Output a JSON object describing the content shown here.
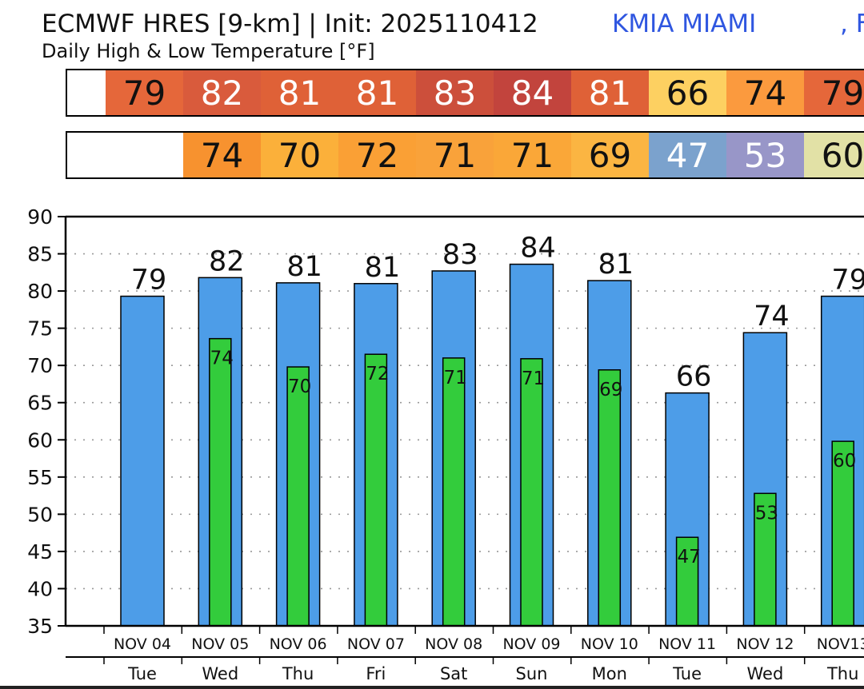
{
  "header": {
    "title": "ECMWF HRES [9-km] | Init: 2025110412",
    "station": "KMIA MIAMI",
    "station_extra": ", F",
    "subtitle": "Daily High & Low Temperature [°F]"
  },
  "high_strip": {
    "values": [
      "79",
      "82",
      "81",
      "81",
      "83",
      "84",
      "81",
      "66",
      "74",
      "79"
    ],
    "colors": [
      "#e5673a",
      "#d95b3c",
      "#df6137",
      "#df6137",
      "#cc4f3b",
      "#c2443d",
      "#df6137",
      "#fdd061",
      "#fb9a3e",
      "#e5673a"
    ],
    "text_colors": [
      "#111111",
      "#ffffff",
      "#ffffff",
      "#ffffff",
      "#ffffff",
      "#ffffff",
      "#ffffff",
      "#111111",
      "#111111",
      "#111111"
    ]
  },
  "low_strip": {
    "values": [
      "74",
      "70",
      "72",
      "71",
      "71",
      "69",
      "47",
      "53",
      "60"
    ],
    "colors": [
      "#f7922f",
      "#fbb03a",
      "#faa035",
      "#f9a23a",
      "#faa738",
      "#fbb542",
      "#7ba2cd",
      "#9896c8",
      "#e2e1a6"
    ],
    "text_colors": [
      "#111111",
      "#111111",
      "#111111",
      "#111111",
      "#111111",
      "#111111",
      "#ffffff",
      "#ffffff",
      "#111111"
    ]
  },
  "chart_data": {
    "type": "bar",
    "title": "Daily High & Low Temperature [°F]",
    "categories": [
      "NOV 04",
      "NOV 05",
      "NOV 06",
      "NOV 07",
      "NOV 08",
      "NOV 09",
      "NOV 10",
      "NOV 11",
      "NOV 12",
      "NOV13"
    ],
    "weekdays": [
      "Tue",
      "Wed",
      "Thu",
      "Fri",
      "Sat",
      "Sun",
      "Mon",
      "Tue",
      "Wed",
      "Thu"
    ],
    "series": [
      {
        "name": "High",
        "color": "#4d9de8",
        "values": [
          79.3,
          81.8,
          81.1,
          81.0,
          82.7,
          83.6,
          81.4,
          66.3,
          74.4,
          79.3
        ],
        "labels": [
          "79",
          "82",
          "81",
          "81",
          "83",
          "84",
          "81",
          "66",
          "74",
          "79"
        ]
      },
      {
        "name": "Low",
        "color": "#33cc3c",
        "values": [
          null,
          73.6,
          69.8,
          71.5,
          71.0,
          70.9,
          69.4,
          46.9,
          52.8,
          59.8
        ],
        "labels": [
          "",
          "74",
          "70",
          "72",
          "71",
          "71",
          "69",
          "47",
          "53",
          "60"
        ]
      }
    ],
    "ylim": [
      35,
      90
    ],
    "yticks": [
      35,
      40,
      45,
      50,
      55,
      60,
      65,
      70,
      75,
      80,
      85,
      90
    ],
    "grid": true,
    "xlabel": "",
    "ylabel": ""
  }
}
